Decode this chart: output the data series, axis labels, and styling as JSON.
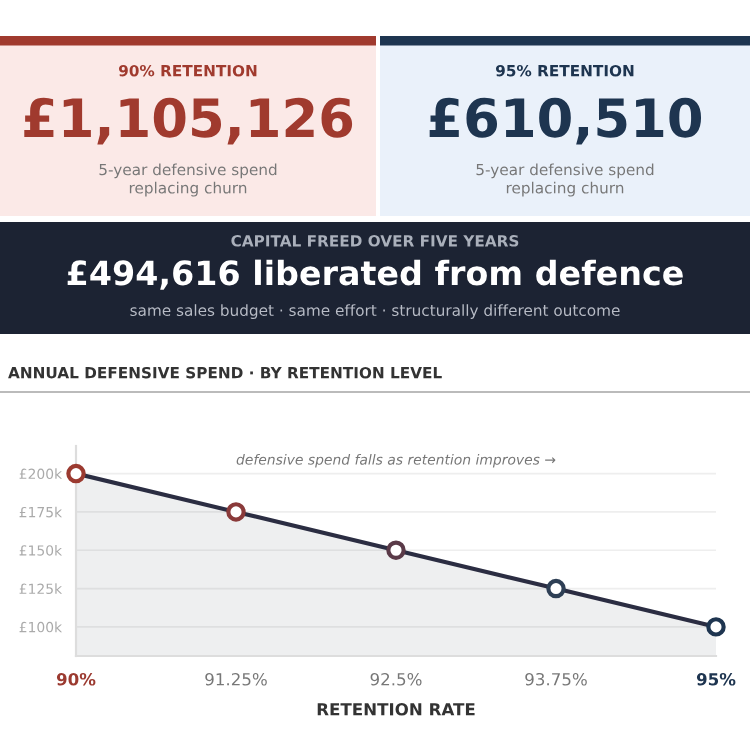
{
  "chart_data": [
    {
      "type": "other",
      "title": "90% RETENTION",
      "subtitle": "£1,105,126",
      "annotations": [
        "5-year defensive spend\nreplacing churn"
      ]
    },
    {
      "type": "other",
      "title": "95% RETENTION",
      "subtitle": "£610,510",
      "annotations": [
        "5-year defensive spend\nreplacing churn"
      ]
    },
    {
      "type": "other",
      "title": "CAPITAL FREED OVER FIVE YEARS",
      "subtitle": "£494,616 liberated from defence",
      "annotations": [
        "same sales budget · same effort · structurally different outcome"
      ]
    },
    {
      "type": "area",
      "title": "ANNUAL DEFENSIVE SPEND · BY RETENTION LEVEL",
      "xlabel": "RETENTION RATE",
      "x": [
        90,
        91.25,
        92.5,
        93.75,
        95
      ],
      "series": [
        {
          "color": "#2b2d42",
          "colors": [
            "#9b3a30",
            "#8a3a3a",
            "#5a3a48",
            "#2e3f55",
            "#1e3550"
          ],
          "values": [
            200000,
            175000,
            150000,
            125000,
            100000
          ]
        }
      ],
      "xlim": [
        90,
        95
      ],
      "xticks": [
        {
          "value": 90,
          "label": "90%"
        },
        {
          "value": 91.25,
          "label": "91.25%"
        },
        {
          "value": 92.5,
          "label": "92.5%"
        },
        {
          "value": 93.75,
          "label": "93.75%"
        },
        {
          "value": 95,
          "label": "95%"
        }
      ],
      "ylim": [
        81000,
        218000
      ],
      "yticks": [
        {
          "value": 100000,
          "label": "£100k"
        },
        {
          "value": 125000,
          "label": "£125k"
        },
        {
          "value": 150000,
          "label": "£150k"
        },
        {
          "value": 175000,
          "label": "£175k"
        },
        {
          "value": 200000,
          "label": "£200k"
        }
      ],
      "grid": "y",
      "marker": "circle",
      "annotations": [
        "defensive spend falls as retention improves →"
      ]
    }
  ]
}
